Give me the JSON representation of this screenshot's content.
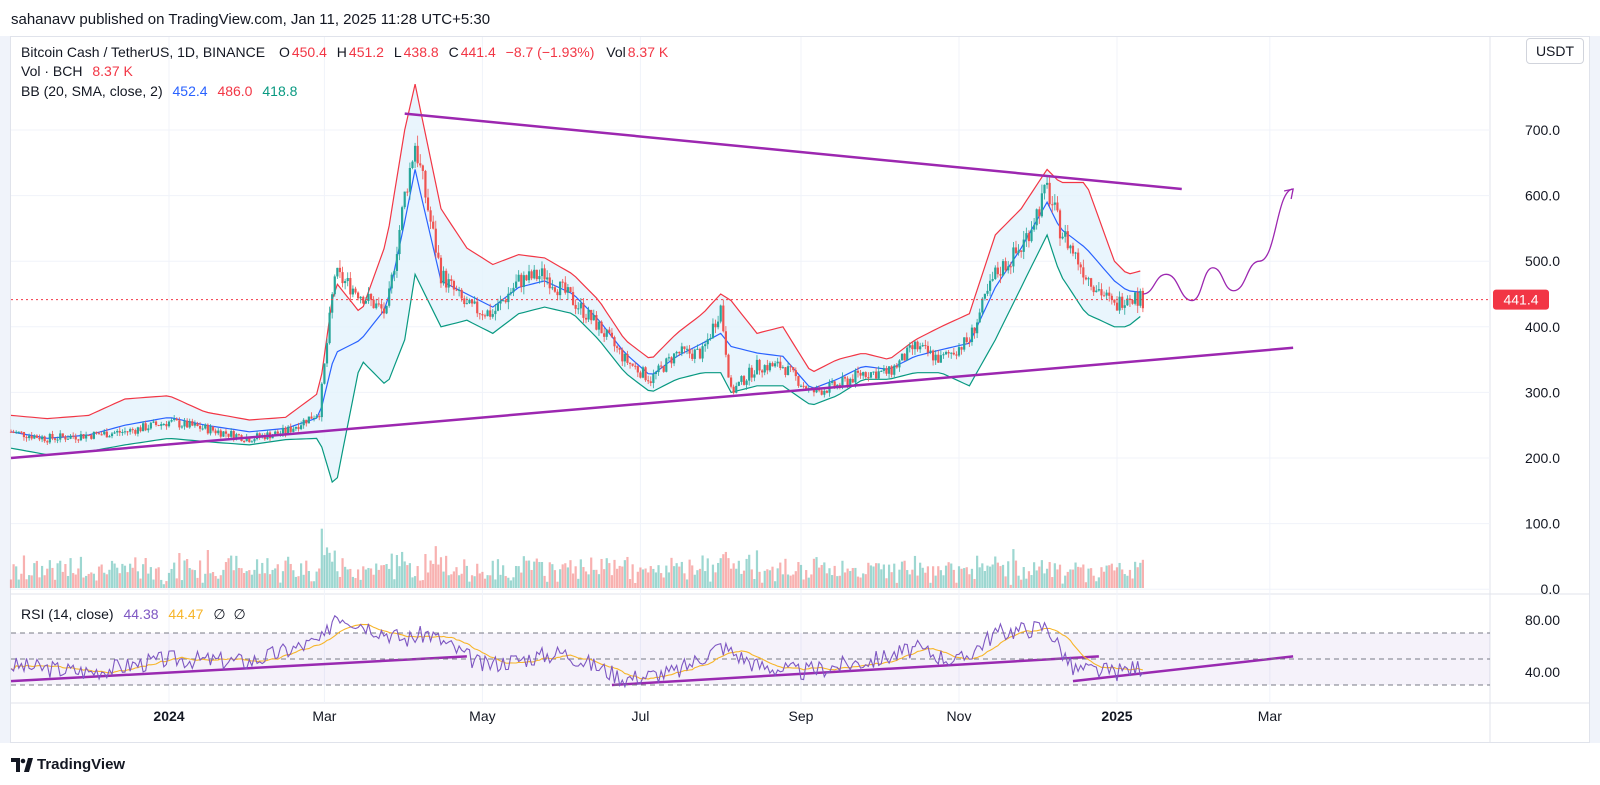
{
  "header": {
    "publish_line": "sahanavv published on TradingView.com, Jan 11, 2025 11:28 UTC+5:30"
  },
  "legend": {
    "symbol": "Bitcoin Cash / TetherUS, 1D, BINANCE",
    "o_label": "O",
    "o_value": "450.4",
    "h_label": "H",
    "h_value": "451.2",
    "l_label": "L",
    "l_value": "438.8",
    "c_label": "C",
    "c_value": "441.4",
    "change": "−8.7 (−1.93%)",
    "vol_label": "Vol",
    "vol_value": "8.37 K",
    "vol_line_label": "Vol · BCH",
    "vol_line_value": "8.37 K",
    "bb_label": "BB (20, SMA, close, 2)",
    "bb_basis": "452.4",
    "bb_upper": "486.0",
    "bb_lower": "418.8",
    "rsi_label": "RSI (14, close)",
    "rsi_value": "44.38",
    "rsi_ma": "44.47",
    "rsi_extra1": "∅",
    "rsi_extra2": "∅"
  },
  "currency_button": "USDT",
  "footer": {
    "brand": "TradingView",
    "logo_icon": "tradingview-logo-icon"
  },
  "colors": {
    "up": "#26a69a",
    "down": "#ef5350",
    "bb_basis": "#2962ff",
    "bb_upper": "#f23645",
    "bb_lower": "#089981",
    "bb_fill": "#e3f2fd",
    "trendline": "#9c27b0",
    "rsi": "#7e57c2",
    "rsi_ma": "#f7b529",
    "price_marker": "#f23645"
  },
  "chart_data": [
    {
      "type": "candlestick",
      "title": "Bitcoin Cash / TetherUS, 1D, BINANCE",
      "x_tick_labels": [
        "2024",
        "Mar",
        "May",
        "Jul",
        "Sep",
        "Nov",
        "2025",
        "Mar"
      ],
      "y_tick_labels": [
        "700.0",
        "600.0",
        "500.0",
        "400.0",
        "300.0",
        "200.0",
        "100.0",
        "0.0"
      ],
      "ylim": [
        0,
        790
      ],
      "last_price": 441.4,
      "last_price_label": "441.4",
      "close_series": {
        "dates": [
          "2023-11-01",
          "2023-11-15",
          "2023-12-01",
          "2023-12-15",
          "2024-01-01",
          "2024-01-15",
          "2024-02-01",
          "2024-02-15",
          "2024-02-28",
          "2024-03-05",
          "2024-03-15",
          "2024-03-25",
          "2024-04-01",
          "2024-04-05",
          "2024-04-15",
          "2024-04-25",
          "2024-05-05",
          "2024-05-15",
          "2024-05-25",
          "2024-06-05",
          "2024-06-15",
          "2024-06-25",
          "2024-07-05",
          "2024-07-15",
          "2024-07-25",
          "2024-08-01",
          "2024-08-05",
          "2024-08-15",
          "2024-08-25",
          "2024-09-05",
          "2024-09-15",
          "2024-09-25",
          "2024-10-05",
          "2024-10-15",
          "2024-10-25",
          "2024-11-05",
          "2024-11-15",
          "2024-11-25",
          "2024-12-05",
          "2024-12-10",
          "2024-12-20",
          "2024-12-31",
          "2025-01-05",
          "2025-01-11"
        ],
        "close": [
          240,
          230,
          235,
          240,
          255,
          245,
          230,
          240,
          270,
          480,
          450,
          420,
          600,
          680,
          480,
          430,
          420,
          470,
          480,
          440,
          400,
          350,
          320,
          360,
          360,
          430,
          300,
          340,
          340,
          300,
          310,
          330,
          330,
          370,
          350,
          380,
          480,
          520,
          610,
          550,
          480,
          430,
          450,
          441.4
        ]
      },
      "bollinger": {
        "upper": [
          265,
          260,
          265,
          290,
          295,
          270,
          258,
          262,
          300,
          470,
          420,
          530,
          700,
          770,
          580,
          520,
          495,
          510,
          505,
          480,
          440,
          380,
          350,
          390,
          420,
          450,
          440,
          390,
          400,
          330,
          350,
          360,
          350,
          380,
          400,
          420,
          540,
          580,
          640,
          620,
          620,
          500,
          480,
          486
        ],
        "basis": [
          240,
          230,
          235,
          250,
          262,
          250,
          240,
          245,
          262,
          360,
          380,
          430,
          560,
          640,
          470,
          450,
          430,
          460,
          470,
          450,
          410,
          360,
          325,
          355,
          375,
          390,
          370,
          360,
          355,
          305,
          320,
          340,
          335,
          355,
          365,
          375,
          460,
          520,
          590,
          550,
          520,
          470,
          455,
          452.4
        ],
        "lower": [
          215,
          205,
          210,
          220,
          230,
          225,
          220,
          228,
          230,
          150,
          350,
          310,
          380,
          480,
          400,
          410,
          390,
          420,
          430,
          420,
          380,
          330,
          300,
          320,
          330,
          330,
          300,
          310,
          310,
          280,
          295,
          320,
          320,
          330,
          330,
          310,
          380,
          460,
          540,
          480,
          420,
          400,
          400,
          418.8
        ]
      },
      "trendlines": [
        {
          "from": [
            "2024-04-01",
            725
          ],
          "to": [
            "2025-01-26",
            610
          ]
        },
        {
          "from": [
            "2023-11-01",
            200
          ],
          "to": [
            "2025-03-10",
            368
          ]
        }
      ],
      "projection": {
        "dates": [
          "2025-01-11",
          "2025-01-20",
          "2025-01-30",
          "2025-02-07",
          "2025-02-15",
          "2025-02-25",
          "2025-03-10"
        ],
        "values": [
          450,
          480,
          440,
          490,
          455,
          500,
          610
        ]
      }
    },
    {
      "type": "bar",
      "title": "Vol · BCH",
      "note": "volume bars, colored by candle direction",
      "last_value": "8.37 K"
    },
    {
      "type": "line",
      "title": "RSI (14, close)",
      "y_tick_labels": [
        "80.00",
        "40.00"
      ],
      "levels": [
        70,
        50,
        30
      ],
      "ylim": [
        20,
        100
      ],
      "series": [
        {
          "name": "RSI",
          "last": 44.38
        },
        {
          "name": "RSI MA",
          "last": 44.47
        }
      ],
      "rsi_points": {
        "dates": [
          "2023-11-01",
          "2023-12-01",
          "2024-01-01",
          "2024-02-01",
          "2024-03-01",
          "2024-03-05",
          "2024-04-01",
          "2024-04-10",
          "2024-05-01",
          "2024-06-01",
          "2024-06-25",
          "2024-07-15",
          "2024-08-01",
          "2024-08-15",
          "2024-09-01",
          "2024-10-01",
          "2024-10-15",
          "2024-11-01",
          "2024-11-15",
          "2024-12-05",
          "2024-12-15",
          "2025-01-01",
          "2025-01-11"
        ],
        "values": [
          45,
          40,
          50,
          48,
          65,
          85,
          65,
          70,
          45,
          55,
          35,
          40,
          60,
          45,
          40,
          50,
          58,
          48,
          70,
          75,
          42,
          40,
          44.38
        ]
      },
      "trendlines": [
        {
          "from": [
            "2023-11-01",
            33
          ],
          "to": [
            "2024-04-25",
            52
          ]
        },
        {
          "from": [
            "2024-06-20",
            30
          ],
          "to": [
            "2024-12-25",
            52
          ]
        },
        {
          "from": [
            "2024-12-15",
            33
          ],
          "to": [
            "2025-03-10",
            52
          ]
        }
      ]
    }
  ]
}
